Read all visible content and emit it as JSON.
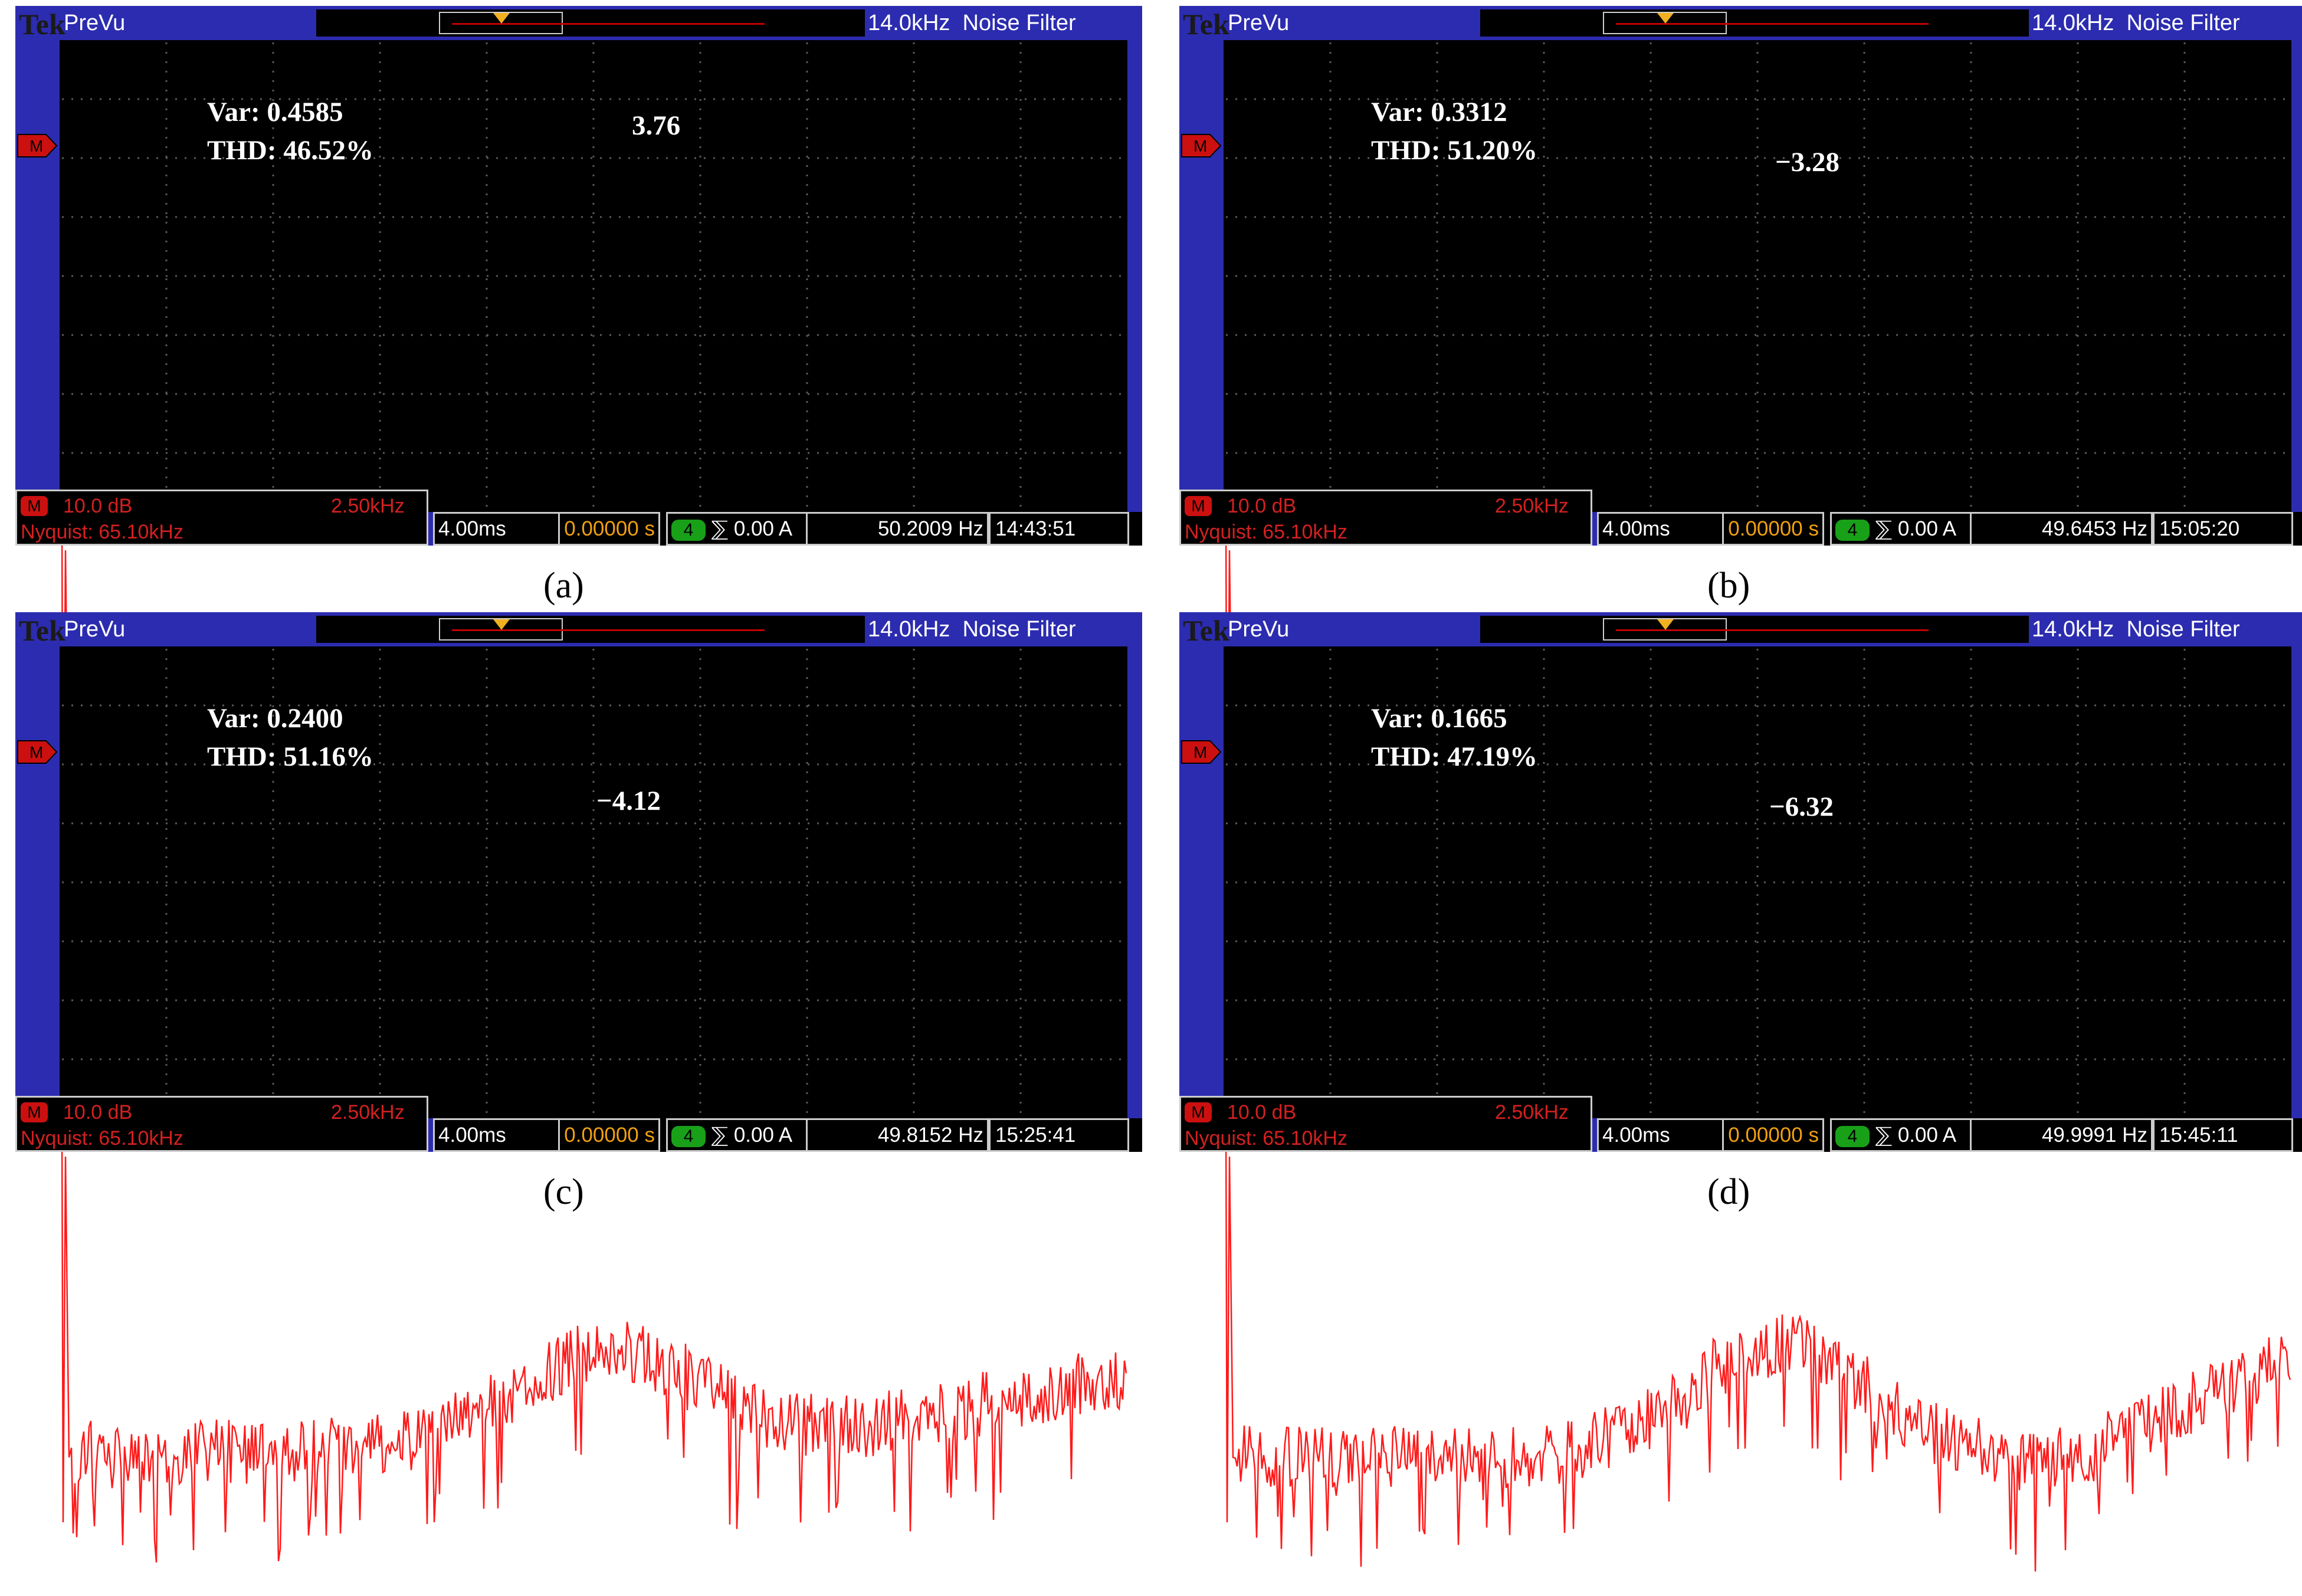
{
  "scope": {
    "brand": "Tek",
    "mode": "PreVu",
    "filter_freq": "14.0kHz",
    "filter_name": "Noise Filter",
    "math_label": "M",
    "math_scale": "10.0 dB",
    "math_span": "2.50kHz",
    "nyquist": "Nyquist: 65.10kHz",
    "timebase": "4.00ms",
    "position": "0.00000 s",
    "channel": "4",
    "trigger": "⅀ 0.00 A"
  },
  "panels": [
    {
      "caption": "(a)",
      "var": "Var: 0.4585",
      "thd": "THD: 46.52%",
      "peak": "3.76",
      "freq": "50.2009 Hz",
      "time": "14:43:51"
    },
    {
      "caption": "(b)",
      "var": "Var: 0.3312",
      "thd": "THD: 51.20%",
      "peak": "−3.28",
      "freq": "49.6453 Hz",
      "time": "15:05:20"
    },
    {
      "caption": "(c)",
      "var": "Var: 0.2400",
      "thd": "THD: 51.16%",
      "peak": "−4.12",
      "freq": "49.8152 Hz",
      "time": "15:25:41"
    },
    {
      "caption": "(d)",
      "var": "Var: 0.1665",
      "thd": "THD: 47.19%",
      "peak": "−6.32",
      "freq": "49.9991 Hz",
      "time": "15:45:11"
    }
  ],
  "colors": {
    "trace": "#ff1a1a",
    "bezel": "#2c2cb0",
    "trigger_marker": "#f0b020",
    "channel_badge": "#19a019"
  }
}
